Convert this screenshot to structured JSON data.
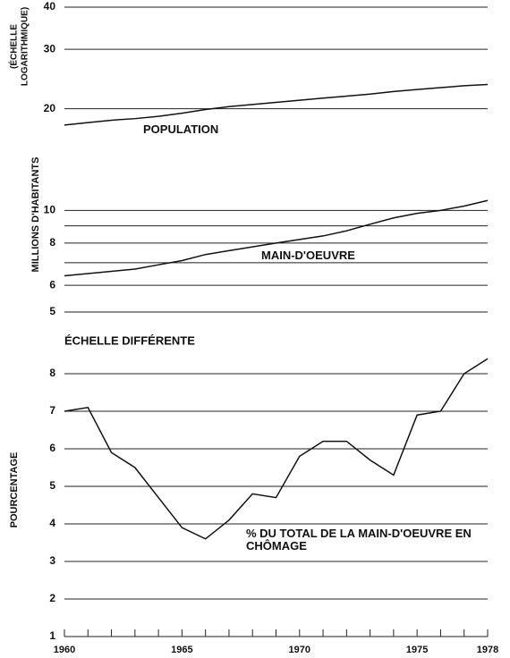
{
  "chart_data": [
    {
      "type": "line",
      "log_scale": true,
      "scale_note": [
        "(ÉCHELLE",
        "LOGARITHMIQUE)"
      ],
      "ylabel": "MILLIONS D'HABITANTS",
      "x": [
        1960,
        1961,
        1962,
        1963,
        1964,
        1965,
        1966,
        1967,
        1968,
        1969,
        1970,
        1971,
        1972,
        1973,
        1974,
        1975,
        1976,
        1977,
        1978
      ],
      "xlim": [
        1960,
        1978
      ],
      "ylim": [
        5,
        40
      ],
      "yticks": [
        5,
        6,
        8,
        10,
        20,
        30,
        40
      ],
      "minor_yticks": [
        7,
        9
      ],
      "grid": true,
      "series": [
        {
          "name": "POPULATION",
          "color": "#111111",
          "values": [
            17.9,
            18.2,
            18.5,
            18.7,
            19.0,
            19.4,
            19.9,
            20.3,
            20.6,
            20.9,
            21.2,
            21.5,
            21.8,
            22.1,
            22.5,
            22.8,
            23.1,
            23.4,
            23.6
          ]
        },
        {
          "name": "MAIN-D'OEUVRE",
          "color": "#111111",
          "values": [
            6.4,
            6.5,
            6.6,
            6.7,
            6.9,
            7.1,
            7.4,
            7.6,
            7.8,
            8.0,
            8.2,
            8.4,
            8.7,
            9.1,
            9.5,
            9.8,
            10.0,
            10.3,
            10.7
          ]
        }
      ]
    },
    {
      "type": "line",
      "log_scale": false,
      "subtitle": "ÉCHELLE DIFFÉRENTE",
      "ylabel": "POURCENTAGE",
      "x": [
        1960,
        1961,
        1962,
        1963,
        1964,
        1965,
        1966,
        1967,
        1968,
        1969,
        1970,
        1971,
        1972,
        1973,
        1974,
        1975,
        1976,
        1977,
        1978
      ],
      "xlim": [
        1960,
        1978
      ],
      "xticks": [
        1960,
        1965,
        1970,
        1975,
        1978
      ],
      "ylim": [
        1,
        8.5
      ],
      "yticks": [
        1,
        2,
        3,
        4,
        5,
        6,
        7,
        8
      ],
      "grid": true,
      "series": [
        {
          "name": "% DU TOTAL DE LA MAIN-D'OEUVRE EN CHÔMAGE",
          "color": "#111111",
          "values": [
            7.0,
            7.1,
            5.9,
            5.5,
            4.7,
            3.9,
            3.6,
            4.1,
            4.8,
            4.7,
            5.8,
            6.2,
            6.2,
            5.7,
            5.3,
            6.9,
            7.0,
            8.0,
            8.4
          ]
        }
      ]
    }
  ]
}
